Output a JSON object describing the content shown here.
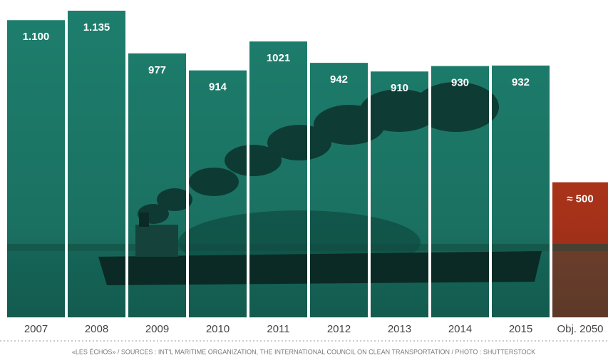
{
  "chart_data": {
    "type": "bar",
    "categories": [
      "2007",
      "2008",
      "2009",
      "2010",
      "2011",
      "2012",
      "2013",
      "2014",
      "2015",
      "Obj. 2050"
    ],
    "values": [
      1100,
      1135,
      977,
      914,
      1021,
      942,
      910,
      930,
      932,
      500
    ],
    "value_labels": [
      "1.100",
      "1.135",
      "977",
      "914",
      "1021",
      "942",
      "910",
      "930",
      "932",
      "≈ 500"
    ],
    "colors": [
      "#1f8573",
      "#1f8573",
      "#1f8573",
      "#1f8573",
      "#1f8573",
      "#1f8573",
      "#1f8573",
      "#1f8573",
      "#1f8573",
      "#c23a1e"
    ],
    "source": "«LES ÉCHOS» / SOURCES : INT'L MARITIME ORGANIZATION, THE INTERNATIONAL COUNCIL ON CLEAN TRANSPORTATION / PHOTO : SHUTTERSTOCK"
  }
}
